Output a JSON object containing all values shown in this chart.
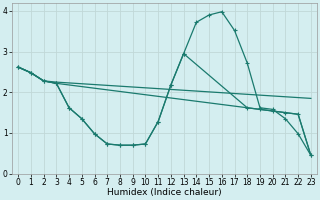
{
  "xlabel": "Humidex (Indice chaleur)",
  "xlim": [
    -0.5,
    23.5
  ],
  "ylim": [
    0,
    4.2
  ],
  "yticks": [
    0,
    1,
    2,
    3,
    4
  ],
  "xticks": [
    0,
    1,
    2,
    3,
    4,
    5,
    6,
    7,
    8,
    9,
    10,
    11,
    12,
    13,
    14,
    15,
    16,
    17,
    18,
    19,
    20,
    21,
    22,
    23
  ],
  "bg_color": "#d4eef0",
  "grid_color": "#c0d8d8",
  "line_color": "#1a7a6e",
  "lineA_x": [
    0,
    1,
    2,
    3,
    4,
    5,
    6,
    7,
    8,
    9,
    10,
    11,
    12,
    13,
    14,
    15,
    16,
    17,
    18,
    19,
    20,
    21,
    22,
    23
  ],
  "lineA_y": [
    2.62,
    2.48,
    2.28,
    2.25,
    2.23,
    2.21,
    2.19,
    2.17,
    2.15,
    2.13,
    2.11,
    2.09,
    2.07,
    2.05,
    2.03,
    2.01,
    1.99,
    1.97,
    1.95,
    1.93,
    1.91,
    1.89,
    1.87,
    1.85
  ],
  "lineB_x": [
    0,
    1,
    2,
    3,
    4,
    5,
    6,
    7,
    8,
    9,
    10,
    11,
    12,
    13,
    14,
    15,
    16,
    17,
    18,
    19,
    20,
    21,
    22,
    23
  ],
  "lineB_y": [
    2.62,
    2.48,
    2.28,
    2.22,
    1.62,
    1.35,
    0.98,
    0.73,
    0.7,
    0.7,
    0.73,
    1.28,
    2.18,
    2.95,
    3.72,
    3.9,
    3.98,
    3.52,
    2.72,
    1.62,
    1.58,
    1.35,
    0.98,
    0.45
  ],
  "lineC_x": [
    0,
    1,
    2,
    3,
    4,
    5,
    6,
    7,
    8,
    9,
    10,
    11,
    12,
    13,
    14,
    15,
    16,
    17,
    18,
    19,
    20,
    21,
    22,
    23
  ],
  "lineC_y": [
    2.62,
    2.48,
    2.28,
    2.22,
    2.18,
    2.14,
    2.1,
    2.06,
    2.02,
    1.98,
    1.94,
    1.9,
    1.86,
    1.82,
    1.78,
    1.74,
    1.7,
    1.66,
    1.62,
    1.58,
    1.54,
    1.5,
    1.46,
    0.45
  ],
  "lineD_x": [
    0,
    1,
    2,
    3,
    4,
    5,
    6,
    7,
    8,
    9,
    10,
    11,
    12,
    13,
    18,
    19,
    20,
    21,
    22,
    23
  ],
  "lineD_y": [
    2.62,
    2.48,
    2.28,
    2.22,
    1.62,
    1.35,
    0.98,
    0.73,
    0.7,
    0.7,
    0.73,
    1.28,
    2.18,
    2.95,
    1.62,
    1.58,
    1.54,
    1.5,
    1.46,
    0.45
  ]
}
